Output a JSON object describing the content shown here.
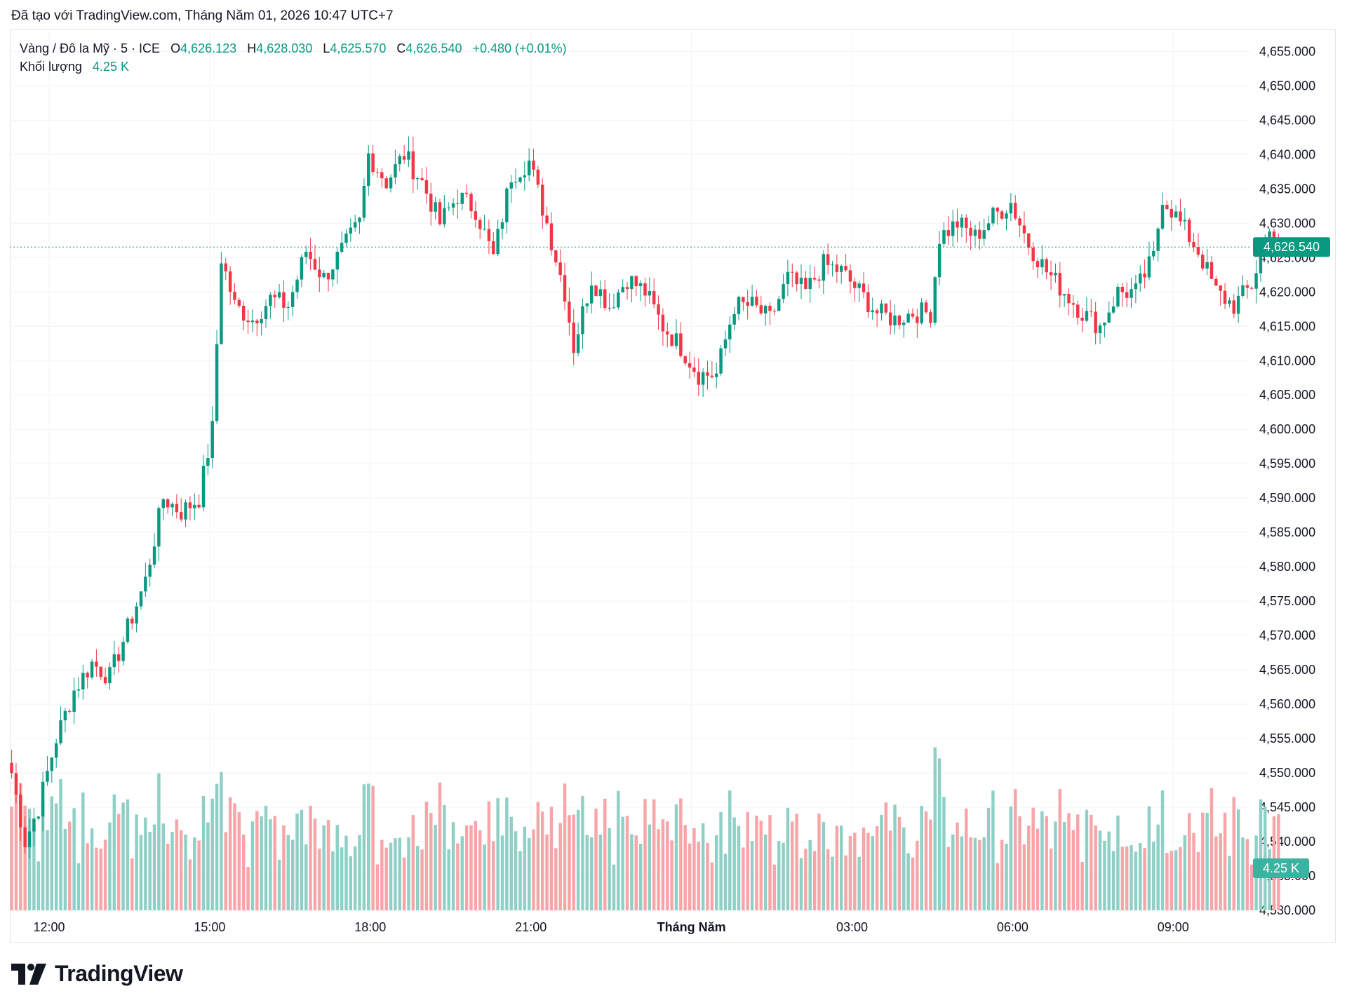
{
  "caption": "Đã tạo với TradingView.com, Tháng Năm 01, 2026 10:47 UTC+7",
  "legend": {
    "symbol": "Vàng / Đô la Mỹ · 5 · ICE",
    "o_label": "O",
    "o_value": "4,626.123",
    "h_label": "H",
    "h_value": "4,628.030",
    "l_label": "L",
    "l_value": "4,625.570",
    "c_label": "C",
    "c_value": "4,626.540",
    "change": "+0.480 (+0.01%)",
    "volume_label": "Khối lượng",
    "volume_value": "4.25 K"
  },
  "brand": "TradingView",
  "colors": {
    "up": "#089981",
    "down": "#f23645",
    "vol_up": "#8ed0c5",
    "vol_down": "#f7a5a9",
    "grid": "#f0f3fa"
  },
  "chart_data": {
    "type": "candlestick",
    "y_range": [
      4530,
      4658
    ],
    "y_ticks": [
      "4,655.000",
      "4,650.000",
      "4,645.000",
      "4,640.000",
      "4,635.000",
      "4,630.000",
      "4,625.000",
      "4,620.000",
      "4,615.000",
      "4,610.000",
      "4,605.000",
      "4,600.000",
      "4,595.000",
      "4,590.000",
      "4,585.000",
      "4,580.000",
      "4,575.000",
      "4,570.000",
      "4,565.000",
      "4,560.000",
      "4,555.000",
      "4,550.000",
      "4,545.000",
      "4,540.000",
      "4,535.000",
      "4,530.000"
    ],
    "x_ticks": [
      {
        "label": "12:00",
        "hour": 12,
        "bold": false
      },
      {
        "label": "15:00",
        "hour": 15,
        "bold": false
      },
      {
        "label": "18:00",
        "hour": 18,
        "bold": false
      },
      {
        "label": "21:00",
        "hour": 21,
        "bold": false
      },
      {
        "label": "Tháng Năm",
        "hour": 24,
        "bold": true
      },
      {
        "label": "03:00",
        "hour": 27,
        "bold": false
      },
      {
        "label": "06:00",
        "hour": 30,
        "bold": false
      },
      {
        "label": "09:00",
        "hour": 33,
        "bold": false
      }
    ],
    "x_start_hour": 11.3,
    "bar_minutes": 5,
    "last_price": 4626.54,
    "last_price_label": "4,626.540",
    "last_volume_label": "4.25 K",
    "close_waypoints": [
      [
        0,
        4550
      ],
      [
        3,
        4540
      ],
      [
        6,
        4545
      ],
      [
        10,
        4555
      ],
      [
        14,
        4562
      ],
      [
        18,
        4566
      ],
      [
        22,
        4564
      ],
      [
        26,
        4571
      ],
      [
        30,
        4578
      ],
      [
        34,
        4590
      ],
      [
        38,
        4588
      ],
      [
        42,
        4590
      ],
      [
        45,
        4600
      ],
      [
        47,
        4625
      ],
      [
        50,
        4618
      ],
      [
        54,
        4616
      ],
      [
        58,
        4619
      ],
      [
        62,
        4618
      ],
      [
        66,
        4626
      ],
      [
        70,
        4622
      ],
      [
        74,
        4626
      ],
      [
        78,
        4630
      ],
      [
        80,
        4640
      ],
      [
        84,
        4636
      ],
      [
        88,
        4640
      ],
      [
        92,
        4636
      ],
      [
        96,
        4630
      ],
      [
        100,
        4634
      ],
      [
        104,
        4632
      ],
      [
        108,
        4625
      ],
      [
        112,
        4637
      ],
      [
        116,
        4639
      ],
      [
        120,
        4630
      ],
      [
        124,
        4620
      ],
      [
        126,
        4612
      ],
      [
        130,
        4622
      ],
      [
        134,
        4618
      ],
      [
        138,
        4622
      ],
      [
        142,
        4620
      ],
      [
        146,
        4615
      ],
      [
        150,
        4612
      ],
      [
        154,
        4608
      ],
      [
        158,
        4608
      ],
      [
        162,
        4618
      ],
      [
        166,
        4618
      ],
      [
        170,
        4616
      ],
      [
        174,
        4622
      ],
      [
        178,
        4620
      ],
      [
        182,
        4624
      ],
      [
        186,
        4623
      ],
      [
        190,
        4620
      ],
      [
        194,
        4617
      ],
      [
        198,
        4616
      ],
      [
        202,
        4617
      ],
      [
        206,
        4617
      ],
      [
        208,
        4628
      ],
      [
        212,
        4630
      ],
      [
        216,
        4628
      ],
      [
        220,
        4631
      ],
      [
        224,
        4633
      ],
      [
        228,
        4627
      ],
      [
        232,
        4623
      ],
      [
        236,
        4620
      ],
      [
        240,
        4617
      ],
      [
        244,
        4615
      ],
      [
        248,
        4620
      ],
      [
        252,
        4620
      ],
      [
        256,
        4625
      ],
      [
        258,
        4634
      ],
      [
        262,
        4630
      ],
      [
        266,
        4626
      ],
      [
        270,
        4620
      ],
      [
        274,
        4618
      ],
      [
        278,
        4621
      ],
      [
        282,
        4630
      ],
      [
        284,
        4626.54
      ]
    ],
    "volume_range": [
      0,
      14
    ]
  }
}
